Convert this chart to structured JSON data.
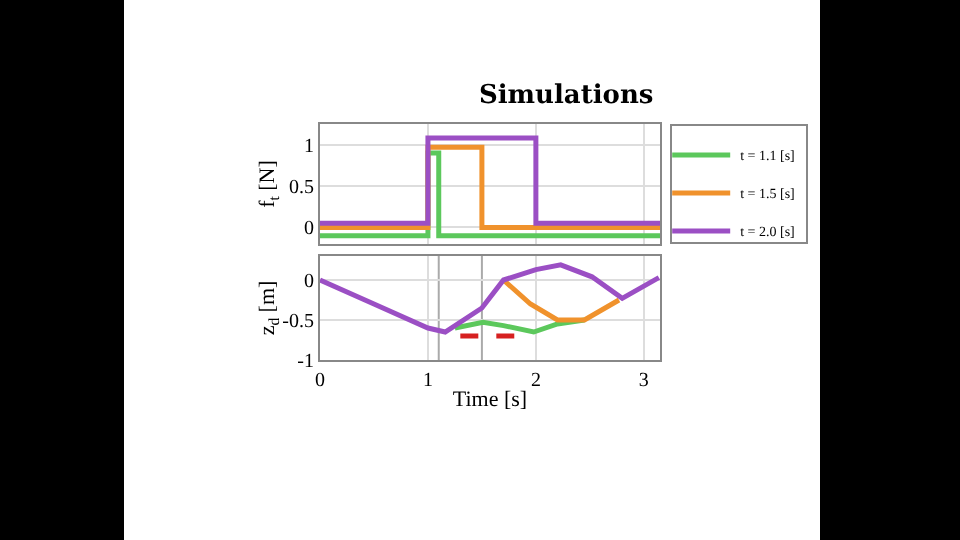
{
  "chart_data": [
    {
      "type": "step",
      "title": "Simulations",
      "ylabel": "f$_{t}$ [N]",
      "xlim": [
        0,
        3.15
      ],
      "xticks": [
        0,
        1,
        2,
        3
      ],
      "ylim": [
        -0.2,
        1.25
      ],
      "yticks": [
        0,
        0.5,
        1
      ],
      "tick_labels": "y",
      "grid": true,
      "legend": "right",
      "line_style": "solid",
      "marker": "none",
      "series": [
        {
          "name": "t = 1.1 [s]",
          "color": "#5cc85c",
          "x": [
            0,
            1,
            1.1,
            3.15
          ],
          "values": [
            -0.1,
            0.9,
            -0.1,
            -0.1
          ]
        },
        {
          "name": "t = 1.5 [s]",
          "color": "#f0922c",
          "x": [
            0,
            1,
            1.5,
            3.15
          ],
          "values": [
            0,
            0.97,
            0,
            0
          ]
        },
        {
          "name": "t = 2.0 [s]",
          "color": "#9b4fc4",
          "x": [
            0,
            1,
            2,
            3.15
          ],
          "values": [
            0.05,
            1.08,
            0.05,
            0.05
          ]
        }
      ]
    },
    {
      "type": "line",
      "xlabel": "Time [s]",
      "ylabel": "z$_{d}$ [m]",
      "xlim": [
        0,
        3.15
      ],
      "xticks": [
        0,
        1,
        2,
        3
      ],
      "ylim": [
        -1,
        0.3
      ],
      "yticks": [
        -1,
        -0.5,
        0
      ],
      "grid": true,
      "legend": false,
      "marker": "none",
      "ref_lines": [
        {
          "axis": "x",
          "value": 1.1,
          "color": "#aaaaaa"
        },
        {
          "axis": "x",
          "value": 1.5,
          "color": "#aaaaaa"
        }
      ],
      "series": [
        {
          "color": "#5cc85c",
          "line_style": "solid",
          "x": [
            1.25,
            1.51,
            1.7,
            1.98,
            2.2,
            2.45
          ],
          "values": [
            -0.6,
            -0.53,
            -0.57,
            -0.65,
            -0.55,
            -0.5
          ]
        },
        {
          "color": "#f0922c",
          "line_style": "solid",
          "x": [
            1.7,
            1.95,
            2.2,
            2.45,
            2.77
          ],
          "values": [
            0,
            -0.3,
            -0.5,
            -0.5,
            -0.25
          ]
        },
        {
          "color": "#9b4fc4",
          "line_style": "solid",
          "x": [
            0,
            0.5,
            1,
            1.16,
            1.5,
            1.7,
            2,
            2.23,
            2.52,
            2.8,
            3.14
          ],
          "values": [
            0,
            -0.3,
            -0.6,
            -0.65,
            -0.35,
            0,
            0.13,
            0.19,
            0.04,
            -0.23,
            0.03
          ]
        },
        {
          "color": "#d62020",
          "line_style": "dashed",
          "x": [
            1.3,
            1.8
          ],
          "values": [
            -0.7,
            -0.7
          ]
        }
      ]
    }
  ]
}
